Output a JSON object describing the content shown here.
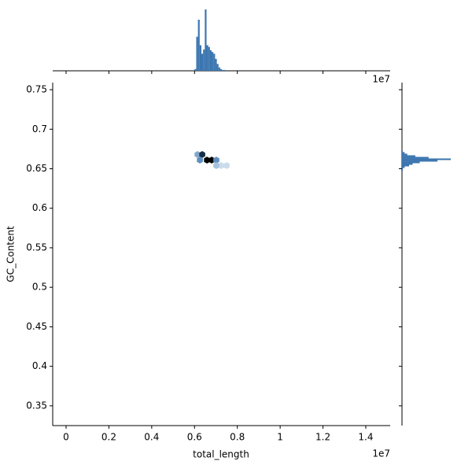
{
  "chart_data": {
    "type": "hexbin_joint",
    "x_label": "total_length",
    "y_label": "GC_Content",
    "x_offset": "1e7",
    "color": "#3b75af",
    "xlim": [
      -0.0625,
      1.514
    ],
    "xticks": [
      0.0,
      0.2,
      0.4,
      0.6,
      0.8,
      1.0,
      1.2,
      1.4
    ],
    "ylim": [
      0.325,
      0.759
    ],
    "yticks": [
      0.35,
      0.4,
      0.45,
      0.5,
      0.55,
      0.6,
      0.65,
      0.7,
      0.75
    ],
    "hexbin": {
      "x": [
        0.614,
        0.636,
        0.658,
        0.68,
        0.702,
        0.625,
        0.724,
        0.702,
        0.75
      ],
      "y": [
        0.668,
        0.668,
        0.661,
        0.661,
        0.661,
        0.661,
        0.654,
        0.654,
        0.654
      ],
      "counts": [
        3,
        8,
        10,
        10,
        4,
        4,
        1,
        2,
        1
      ]
    },
    "x_hist": {
      "bins": [
        0.6,
        0.608,
        0.616,
        0.624,
        0.632,
        0.64,
        0.648,
        0.656,
        0.664,
        0.672,
        0.68,
        0.688,
        0.696,
        0.704,
        0.712,
        0.72,
        0.728,
        0.736,
        0.744
      ],
      "counts": [
        2,
        40,
        60,
        30,
        20,
        25,
        72,
        30,
        28,
        24,
        22,
        20,
        14,
        8,
        4,
        2,
        1,
        1
      ]
    },
    "y_hist": {
      "bins": [
        0.645,
        0.647,
        0.649,
        0.651,
        0.653,
        0.655,
        0.657,
        0.659,
        0.661,
        0.663,
        0.665,
        0.667,
        0.669,
        0.671,
        0.673,
        0.675
      ],
      "counts": [
        0,
        1,
        1,
        3,
        8,
        12,
        20,
        40,
        55,
        30,
        15,
        6,
        3,
        1,
        0
      ]
    }
  }
}
